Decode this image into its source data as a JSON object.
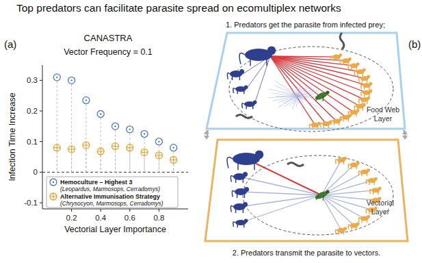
{
  "title": "Top predators can facilitate parasite spread on ecomultiplex networks",
  "chart_data": {
    "type": "scatter",
    "panel_label": "(a)",
    "title": "CANASTRA",
    "subtitle": "Vector Frequency = 0.1",
    "x_label": "Vectorial Layer Importance",
    "y_label": "Infection Time Increase",
    "x": [
      0.1,
      0.2,
      0.3,
      0.4,
      0.5,
      0.6,
      0.7,
      0.8,
      0.9
    ],
    "series": [
      {
        "name": "Hemoculture – Highest 3",
        "genera": "(Leopardus, Marmosops, Cerradomys)",
        "color": "#4a78c0",
        "marker": "circle-dot",
        "values": [
          0.31,
          0.3,
          0.235,
          0.19,
          0.15,
          0.14,
          0.125,
          0.1,
          0.08
        ]
      },
      {
        "name": "Alternative Immunisation Strategy",
        "genera": "(Chrysocyon, Marmosops, Cerradomys)",
        "color": "#e8a43a",
        "marker": "circle-plus",
        "values": [
          0.08,
          0.075,
          0.088,
          0.068,
          0.085,
          0.08,
          0.065,
          0.055,
          0.04
        ]
      }
    ],
    "xlim": [
      0,
      1
    ],
    "xticks": [
      0.2,
      0.4,
      0.6,
      0.8
    ],
    "ylim": [
      -0.12,
      0.35
    ],
    "yticks": [
      -0.1,
      0,
      0.1,
      0.2,
      0.3
    ],
    "reference_lines": [
      0
    ],
    "line_style": "dashed",
    "legend": "lower left",
    "grid": false
  },
  "diagram": {
    "panel_label": "(b)",
    "steps": [
      "1. Predators get the parasite from infected prey;",
      "2. Predators transmit the parasite to vectors."
    ],
    "layers": [
      {
        "label": [
          "Food Web",
          "Layer"
        ]
      },
      {
        "label": [
          "Vectorial",
          "Layer"
        ]
      }
    ]
  }
}
